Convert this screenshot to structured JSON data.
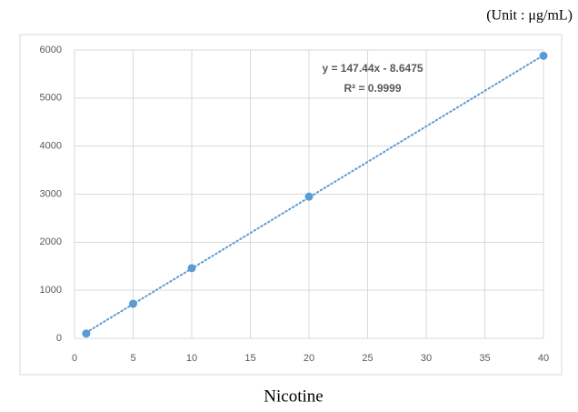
{
  "chart_data": {
    "type": "scatter",
    "unit_label": "(Unit : μg/mL)",
    "x_label": "Nicotine",
    "x": [
      1,
      5,
      10,
      20,
      40
    ],
    "series": [
      {
        "name": "Nicotine",
        "color": "#5b9bd5",
        "values": [
          100,
          720,
          1460,
          2950,
          5880
        ]
      }
    ],
    "xlim": [
      0,
      40
    ],
    "xticks": [
      0,
      5,
      10,
      15,
      20,
      25,
      30,
      35,
      40
    ],
    "ylim": [
      0,
      6000
    ],
    "yticks": [
      0,
      1000,
      2000,
      3000,
      4000,
      5000,
      6000
    ],
    "grid": true,
    "trendline": {
      "equation": "y = 147.44x - 8.6475",
      "r_squared": "R² = 0.9999"
    }
  }
}
